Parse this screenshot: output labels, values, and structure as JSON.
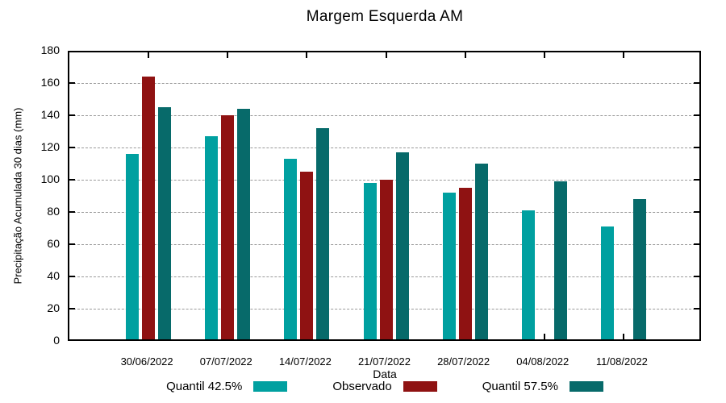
{
  "title": "Margem Esquerda AM",
  "chart_data": {
    "type": "bar",
    "title": "Margem Esquerda AM",
    "xlabel": "Data",
    "ylabel": "Precipitação Acumulada 30 dias (mm)",
    "ylim": [
      0,
      180
    ],
    "y_tick_step": 20,
    "grid": true,
    "grid_color": "#9a9a9a",
    "legend_position": "bottom",
    "categories": [
      "30/06/2022",
      "07/07/2022",
      "14/07/2022",
      "21/07/2022",
      "28/07/2022",
      "04/08/2022",
      "11/08/2022"
    ],
    "series": [
      {
        "name": "Quantil 42.5%",
        "color": "#00A0A0",
        "values": [
          115,
          126,
          112,
          97,
          91,
          80,
          70
        ]
      },
      {
        "name": "Observado",
        "color": "#8F1212",
        "values": [
          163,
          139,
          104,
          99,
          94,
          null,
          null
        ]
      },
      {
        "name": "Quantil 57.5%",
        "color": "#076A6A",
        "values": [
          144,
          143,
          131,
          116,
          109,
          98,
          87
        ]
      }
    ]
  }
}
